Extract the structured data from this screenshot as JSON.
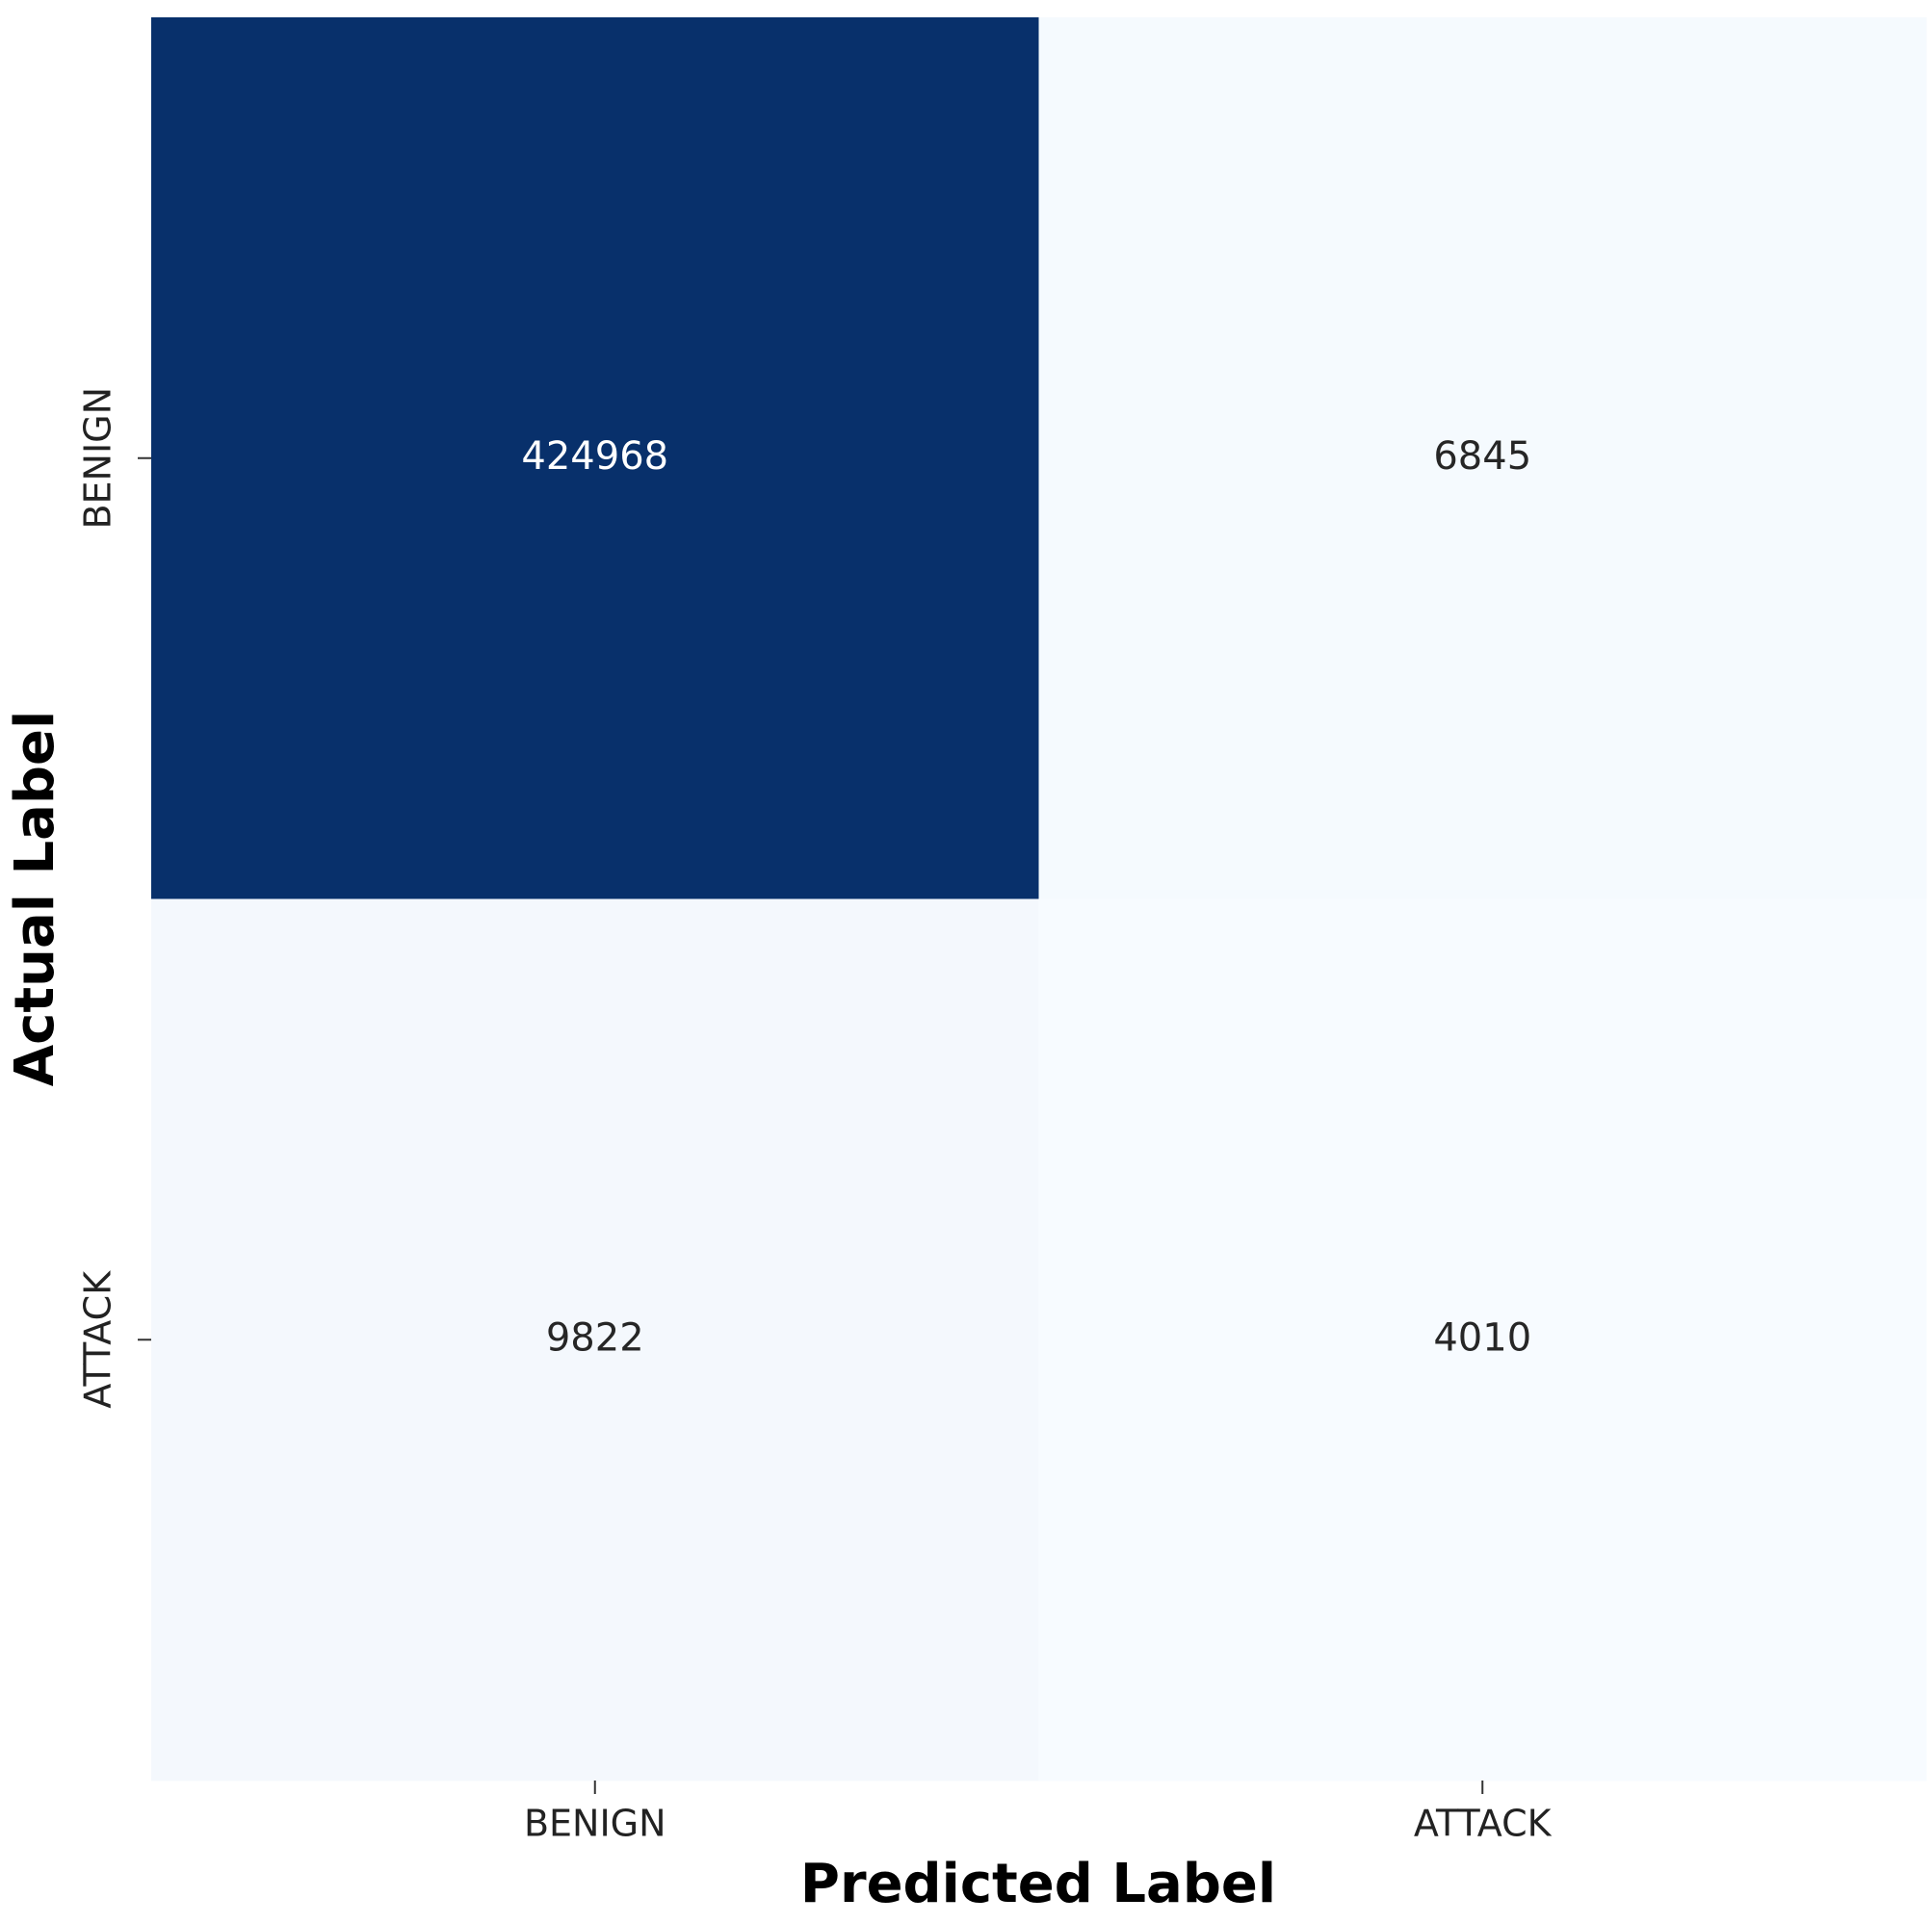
{
  "chart_data": {
    "type": "heatmap",
    "x_categories": [
      "BENIGN",
      "ATTACK"
    ],
    "y_categories": [
      "BENIGN",
      "ATTACK"
    ],
    "values": [
      [
        424968,
        6845
      ],
      [
        9822,
        4010
      ]
    ],
    "xlabel": "Predicted Label",
    "ylabel": "Actual Label",
    "colormap": [
      "#f7fbff",
      "#08306b"
    ]
  }
}
